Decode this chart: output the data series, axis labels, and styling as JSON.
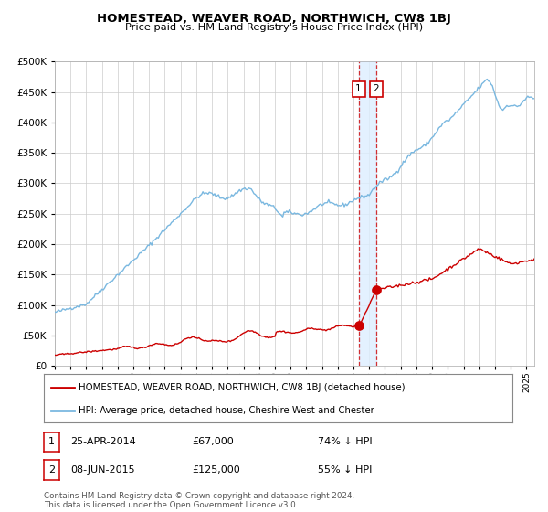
{
  "title": "HOMESTEAD, WEAVER ROAD, NORTHWICH, CW8 1BJ",
  "subtitle": "Price paid vs. HM Land Registry's House Price Index (HPI)",
  "hpi_label": "HPI: Average price, detached house, Cheshire West and Chester",
  "price_label": "HOMESTEAD, WEAVER ROAD, NORTHWICH, CW8 1BJ (detached house)",
  "hpi_color": "#7ab8e0",
  "price_color": "#cc0000",
  "background_color": "#ffffff",
  "grid_color": "#cccccc",
  "annotation_bg": "#ddeeff",
  "ylim": [
    0,
    500000
  ],
  "yticks": [
    0,
    50000,
    100000,
    150000,
    200000,
    250000,
    300000,
    350000,
    400000,
    450000,
    500000
  ],
  "sale1_date": 2014.32,
  "sale1_price": 67000,
  "sale1_label": "1",
  "sale1_info": "25-APR-2014",
  "sale1_amount": "£67,000",
  "sale1_pct": "74% ↓ HPI",
  "sale2_date": 2015.44,
  "sale2_price": 125000,
  "sale2_label": "2",
  "sale2_info": "08-JUN-2015",
  "sale2_amount": "£125,000",
  "sale2_pct": "55% ↓ HPI",
  "xmin": 1995.0,
  "xmax": 2025.5,
  "footnote": "Contains HM Land Registry data © Crown copyright and database right 2024.\nThis data is licensed under the Open Government Licence v3.0."
}
